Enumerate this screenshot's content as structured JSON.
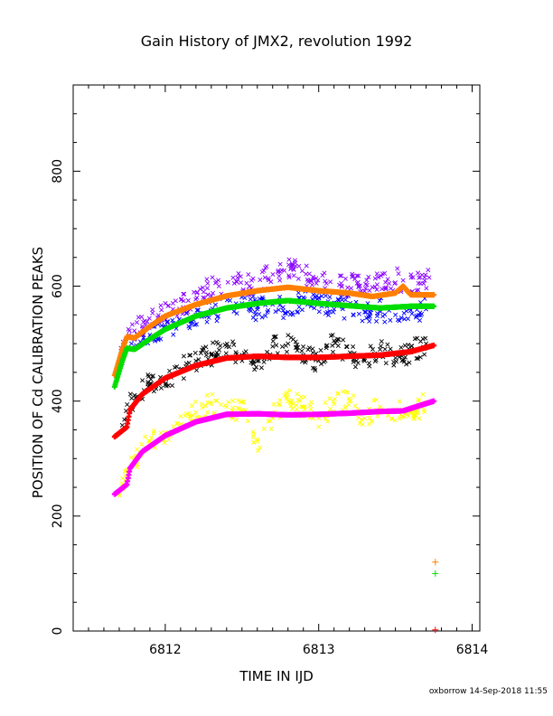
{
  "chart_data": {
    "type": "scatter",
    "title": "Gain History of JMX2, revolution 1992",
    "xlabel": "TIME IN IJD",
    "ylabel": "POSITION OF Cd CALIBRATION PEAKS",
    "xlim": [
      6811.4,
      6814.05
    ],
    "ylim": [
      0,
      950
    ],
    "xticks": [
      6812,
      6813,
      6814
    ],
    "yticks": [
      0,
      200,
      400,
      600,
      800
    ],
    "grid": false,
    "footer": "oxborrow 14-Sep-2018 11:55",
    "colors": {
      "orange": "#ff8000",
      "green": "#00dd00",
      "red": "#ff0000",
      "magenta": "#ff00ff",
      "yellow": "#ffff00",
      "purple": "#8800ff",
      "blue": "#0000ff",
      "black": "#000000"
    },
    "series": [
      {
        "kind": "fit",
        "color": "#ff8000",
        "x": [
          6811.67,
          6811.72,
          6811.75,
          6811.8,
          6811.9,
          6812.0,
          6812.2,
          6812.4,
          6812.6,
          6812.8,
          6813.0,
          6813.2,
          6813.35,
          6813.5,
          6813.55,
          6813.6,
          6813.75
        ],
        "y": [
          445,
          490,
          512,
          510,
          530,
          548,
          568,
          583,
          592,
          598,
          592,
          588,
          582,
          588,
          600,
          585,
          585
        ]
      },
      {
        "kind": "fit",
        "color": "#00dd00",
        "x": [
          6811.67,
          6811.72,
          6811.75,
          6811.8,
          6811.9,
          6812.0,
          6812.2,
          6812.4,
          6812.6,
          6812.8,
          6813.0,
          6813.2,
          6813.4,
          6813.6,
          6813.75
        ],
        "y": [
          425,
          470,
          492,
          490,
          508,
          525,
          548,
          562,
          570,
          575,
          570,
          566,
          562,
          565,
          565
        ]
      },
      {
        "kind": "fit",
        "color": "#ff0000",
        "x": [
          6811.67,
          6811.75,
          6811.77,
          6811.85,
          6812.0,
          6812.2,
          6812.4,
          6812.6,
          6812.8,
          6813.0,
          6813.2,
          6813.4,
          6813.6,
          6813.75
        ],
        "y": [
          338,
          355,
          385,
          412,
          440,
          462,
          475,
          478,
          476,
          476,
          478,
          480,
          486,
          497
        ]
      },
      {
        "kind": "fit",
        "color": "#ff00ff",
        "x": [
          6811.67,
          6811.75,
          6811.77,
          6811.85,
          6812.0,
          6812.2,
          6812.4,
          6812.6,
          6812.8,
          6813.0,
          6813.2,
          6813.4,
          6813.55,
          6813.75
        ],
        "y": [
          238,
          255,
          283,
          312,
          340,
          364,
          377,
          378,
          376,
          377,
          379,
          382,
          383,
          400
        ]
      },
      {
        "kind": "points",
        "color": "#8800ff",
        "x": [
          6811.7,
          6811.76,
          6811.85,
          6811.95,
          6812.05,
          6812.15,
          6812.25,
          6812.35,
          6812.45,
          6812.55,
          6812.65,
          6812.75,
          6812.85,
          6812.95,
          6813.05,
          6813.15,
          6813.25,
          6813.35,
          6813.45,
          6813.55,
          6813.65,
          6813.72
        ],
        "y": [
          465,
          525,
          530,
          545,
          560,
          575,
          590,
          600,
          605,
          600,
          615,
          625,
          635,
          610,
          605,
          600,
          605,
          598,
          612,
          610,
          605,
          615
        ]
      },
      {
        "kind": "points",
        "color": "#0000ff",
        "x": [
          6811.78,
          6811.9,
          6812.0,
          6812.1,
          6812.2,
          6812.3,
          6812.4,
          6812.5,
          6812.6,
          6812.7,
          6812.8,
          6812.9,
          6813.0,
          6813.1,
          6813.2,
          6813.3,
          6813.4,
          6813.5,
          6813.6,
          6813.7
        ],
        "y": [
          500,
          515,
          530,
          540,
          550,
          558,
          562,
          570,
          560,
          568,
          555,
          580,
          570,
          560,
          565,
          555,
          560,
          550,
          558,
          560
        ]
      },
      {
        "kind": "points",
        "color": "#000000",
        "x": [
          6811.72,
          6811.8,
          6811.9,
          6812.0,
          6812.1,
          6812.2,
          6812.3,
          6812.4,
          6812.5,
          6812.6,
          6812.7,
          6812.8,
          6812.9,
          6813.0,
          6813.1,
          6813.2,
          6813.3,
          6813.4,
          6813.5,
          6813.6,
          6813.7
        ],
        "y": [
          358,
          410,
          430,
          440,
          455,
          470,
          480,
          495,
          480,
          470,
          495,
          500,
          480,
          470,
          505,
          480,
          470,
          490,
          475,
          485,
          500
        ]
      },
      {
        "kind": "points",
        "color": "#ffff00",
        "x": [
          6811.7,
          6811.8,
          6811.9,
          6812.0,
          6812.1,
          6812.2,
          6812.3,
          6812.4,
          6812.5,
          6812.6,
          6812.7,
          6812.8,
          6812.9,
          6813.0,
          6813.1,
          6813.2,
          6813.3,
          6813.4,
          6813.5,
          6813.6,
          6813.7
        ],
        "y": [
          240,
          300,
          330,
          345,
          360,
          380,
          395,
          390,
          385,
          330,
          375,
          400,
          390,
          370,
          395,
          400,
          370,
          390,
          385,
          380,
          395
        ]
      },
      {
        "kind": "marker",
        "color": "#ff8000",
        "x": [
          6813.76
        ],
        "y": [
          120
        ]
      },
      {
        "kind": "marker",
        "color": "#00dd00",
        "x": [
          6813.76
        ],
        "y": [
          100
        ]
      },
      {
        "kind": "marker",
        "color": "#ff0000",
        "x": [
          6813.76
        ],
        "y": [
          2
        ]
      }
    ]
  }
}
